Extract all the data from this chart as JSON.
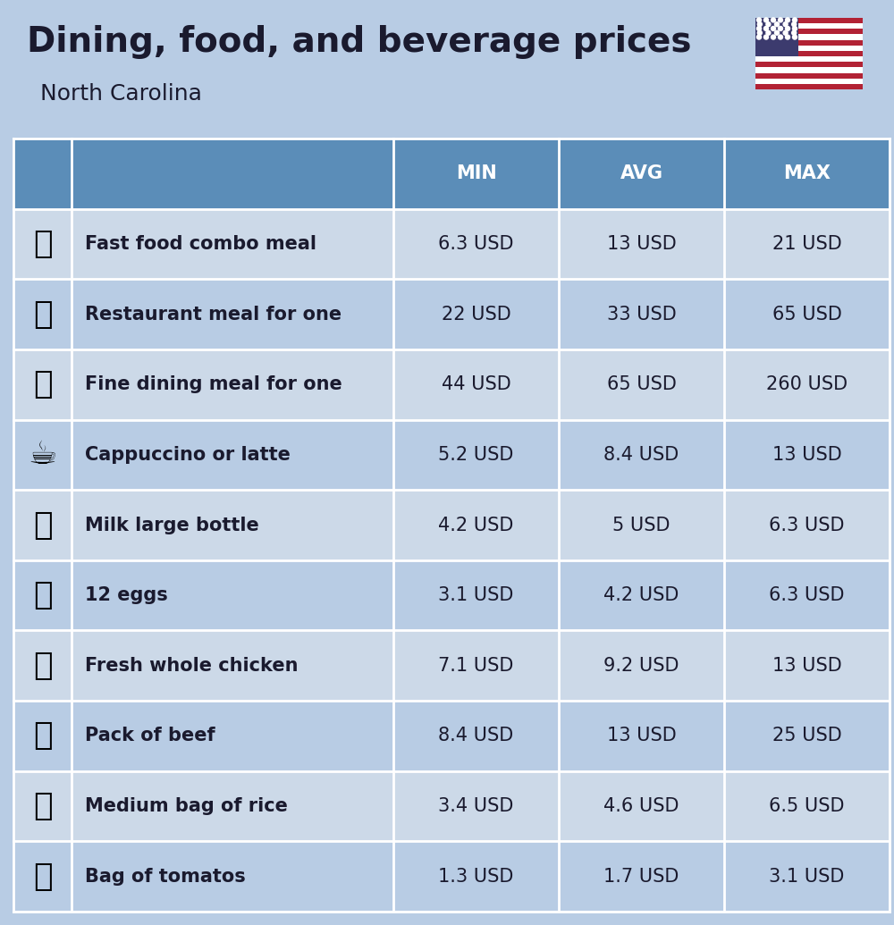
{
  "title": "Dining, food, and beverage prices",
  "subtitle": "North Carolina",
  "background_color": "#b8cce4",
  "header_color": "#5b8db8",
  "header_text_color": "#ffffff",
  "row_color_odd": "#ccd9e8",
  "row_color_even": "#b8cce4",
  "text_color": "#1a1a2e",
  "label_color": "#1a1a2e",
  "columns": [
    "MIN",
    "AVG",
    "MAX"
  ],
  "rows": [
    {
      "label": "Fast food combo meal",
      "min": "6.3 USD",
      "avg": "13 USD",
      "max": "21 USD"
    },
    {
      "label": "Restaurant meal for one",
      "min": "22 USD",
      "avg": "33 USD",
      "max": "65 USD"
    },
    {
      "label": "Fine dining meal for one",
      "min": "44 USD",
      "avg": "65 USD",
      "max": "260 USD"
    },
    {
      "label": "Cappuccino or latte",
      "min": "5.2 USD",
      "avg": "8.4 USD",
      "max": "13 USD"
    },
    {
      "label": "Milk large bottle",
      "min": "4.2 USD",
      "avg": "5 USD",
      "max": "6.3 USD"
    },
    {
      "label": "12 eggs",
      "min": "3.1 USD",
      "avg": "4.2 USD",
      "max": "6.3 USD"
    },
    {
      "label": "Fresh whole chicken",
      "min": "7.1 USD",
      "avg": "9.2 USD",
      "max": "13 USD"
    },
    {
      "label": "Pack of beef",
      "min": "8.4 USD",
      "avg": "13 USD",
      "max": "25 USD"
    },
    {
      "label": "Medium bag of rice",
      "min": "3.4 USD",
      "avg": "4.6 USD",
      "max": "6.5 USD"
    },
    {
      "label": "Bag of tomatos",
      "min": "1.3 USD",
      "avg": "1.7 USD",
      "max": "3.1 USD"
    }
  ],
  "title_fontsize": 28,
  "subtitle_fontsize": 18,
  "header_fontsize": 15,
  "row_fontsize": 15,
  "label_fontsize": 15,
  "icon_fontsize": 26
}
